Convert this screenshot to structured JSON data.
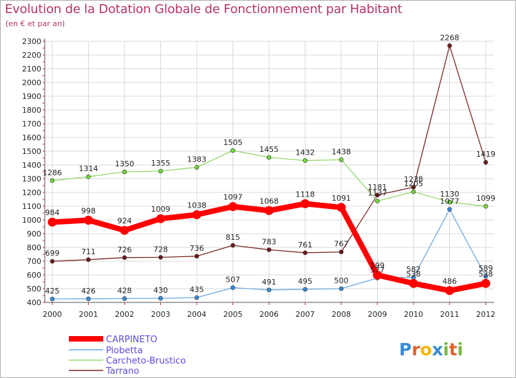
{
  "chart_data": {
    "type": "line",
    "title": "Evolution de la Dotation Globale de Fonctionnement par Habitant",
    "subtitle": "(en € et par an)",
    "x": [
      "2000",
      "2001",
      "2002",
      "2003",
      "2004",
      "2005",
      "2006",
      "2007",
      "2008",
      "2009",
      "2010",
      "2011",
      "2012"
    ],
    "ylim": [
      400,
      2300
    ],
    "yticks": [
      400,
      500,
      600,
      700,
      800,
      900,
      1000,
      1100,
      1200,
      1300,
      1400,
      1500,
      1600,
      1700,
      1800,
      1900,
      2000,
      2100,
      2200,
      2300
    ],
    "grid": true,
    "legend_position": "bottom-left",
    "series": [
      {
        "name": "CARPINETO",
        "color": "#ff0000",
        "values": [
          984,
          998,
          924,
          1009,
          1038,
          1097,
          1068,
          1118,
          1091,
          599,
          538,
          486,
          538
        ]
      },
      {
        "name": "Piobetta",
        "color": "#6fa8dc",
        "values": [
          425,
          426,
          428,
          430,
          435,
          507,
          491,
          495,
          500,
          577,
          582,
          1077,
          589
        ]
      },
      {
        "name": "Carcheto-Brustico",
        "color": "#93d86a",
        "values": [
          1286,
          1314,
          1350,
          1355,
          1383,
          1505,
          1455,
          1432,
          1438,
          1137,
          1205,
          1130,
          1099
        ]
      },
      {
        "name": "Tarrano",
        "color": "#7b2929",
        "values": [
          699,
          711,
          726,
          728,
          736,
          815,
          783,
          761,
          767,
          1181,
          1238,
          2268,
          1419
        ]
      }
    ]
  },
  "branding": {
    "logo_text": "Proxiti"
  }
}
